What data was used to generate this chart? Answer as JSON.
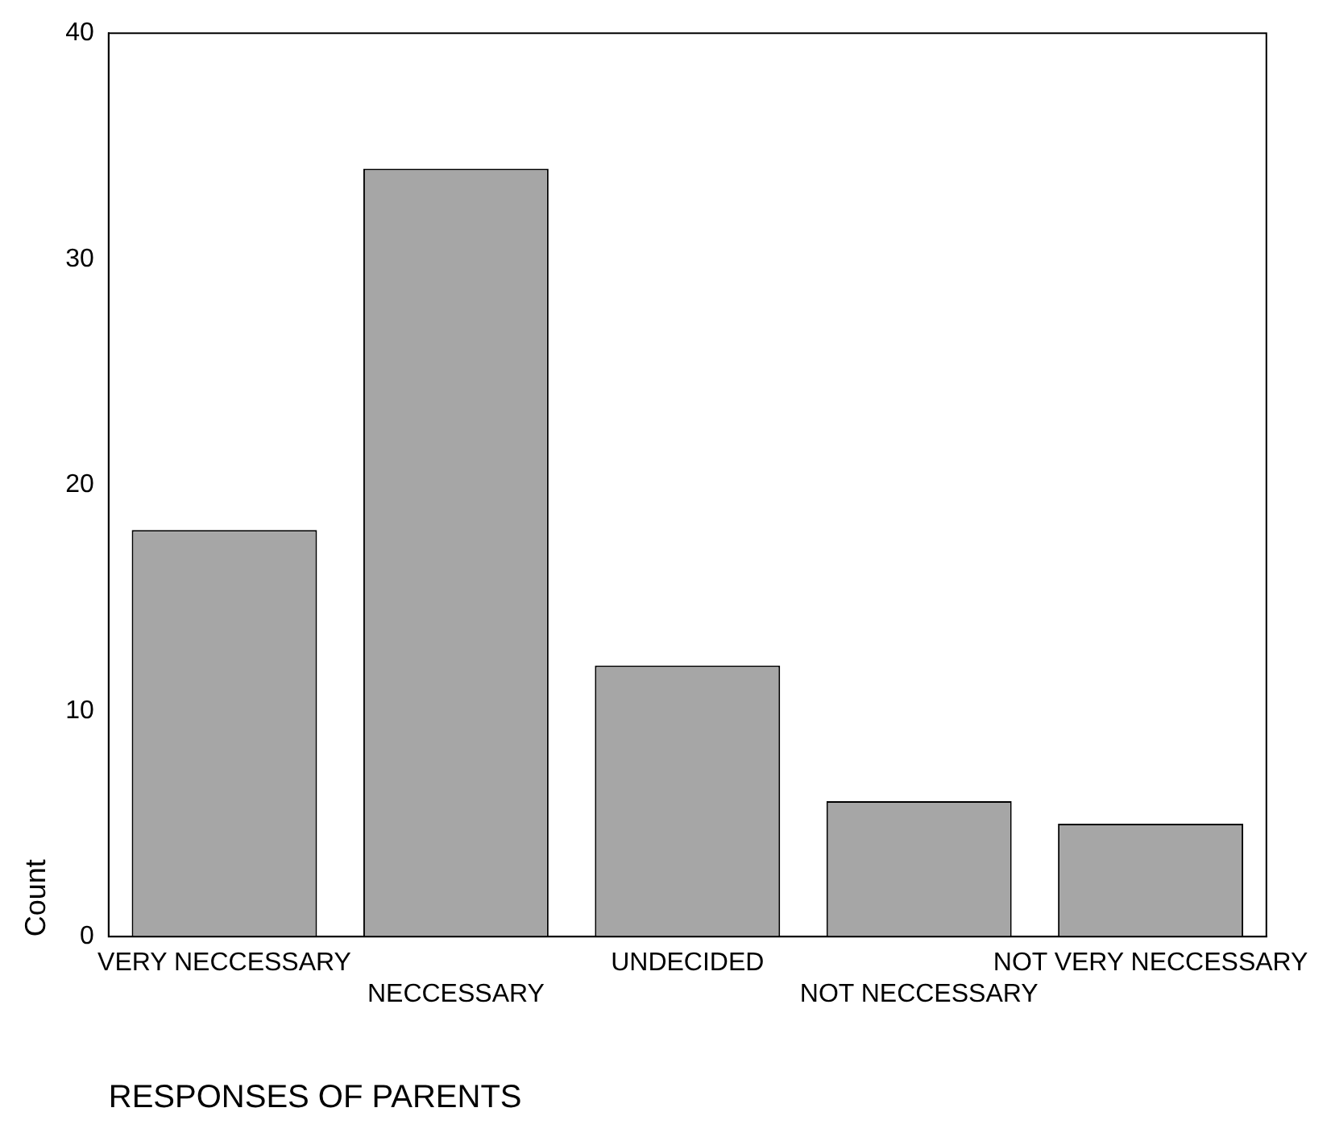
{
  "chart_data": {
    "type": "bar",
    "xlabel": "RESPONSES OF PARENTS",
    "ylabel": "Count",
    "categories": [
      "VERY NECCESSARY",
      "NECCESSARY",
      "UNDECIDED",
      "NOT NECCESSARY",
      "NOT VERY NECCESSARY"
    ],
    "values": [
      18,
      34,
      12,
      6,
      5
    ],
    "color": "#a6a6a6",
    "ylim": [
      0,
      40
    ],
    "yticks": [
      0,
      10,
      20,
      30,
      40
    ],
    "grid": false,
    "legend": false
  }
}
